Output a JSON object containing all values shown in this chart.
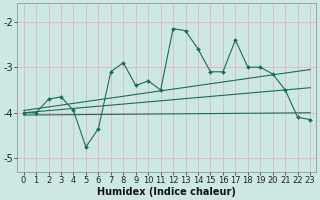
{
  "xlabel": "Humidex (Indice chaleur)",
  "xlim": [
    -0.5,
    23.5
  ],
  "ylim": [
    -5.3,
    -1.6
  ],
  "yticks": [
    -5,
    -4,
    -3,
    -2
  ],
  "xticks": [
    0,
    1,
    2,
    3,
    4,
    5,
    6,
    7,
    8,
    9,
    10,
    11,
    12,
    13,
    14,
    15,
    16,
    17,
    18,
    19,
    20,
    21,
    22,
    23
  ],
  "bg_color": "#cce8e4",
  "line_color": "#1a6b5a",
  "grid_color": "#e8b4b4",
  "main_data_x": [
    0,
    1,
    2,
    3,
    4,
    5,
    6,
    7,
    8,
    9,
    10,
    11,
    12,
    13,
    14,
    15,
    16,
    17,
    18,
    19,
    20,
    21,
    22,
    23
  ],
  "main_data_y": [
    -4.0,
    -4.0,
    -3.7,
    -3.65,
    -3.95,
    -4.75,
    -4.35,
    -3.1,
    -2.9,
    -3.4,
    -3.3,
    -3.5,
    -2.15,
    -2.2,
    -2.6,
    -3.1,
    -3.1,
    -2.4,
    -3.0,
    -3.0,
    -3.15,
    -3.5,
    -4.1,
    -4.15
  ],
  "trend1_x": [
    0,
    23
  ],
  "trend1_y": [
    -3.95,
    -3.05
  ],
  "trend2_x": [
    0,
    23
  ],
  "trend2_y": [
    -4.0,
    -3.45
  ],
  "trend3_x": [
    0,
    23
  ],
  "trend3_y": [
    -4.05,
    -4.0
  ],
  "xlabel_fontsize": 7,
  "tick_fontsize": 6
}
